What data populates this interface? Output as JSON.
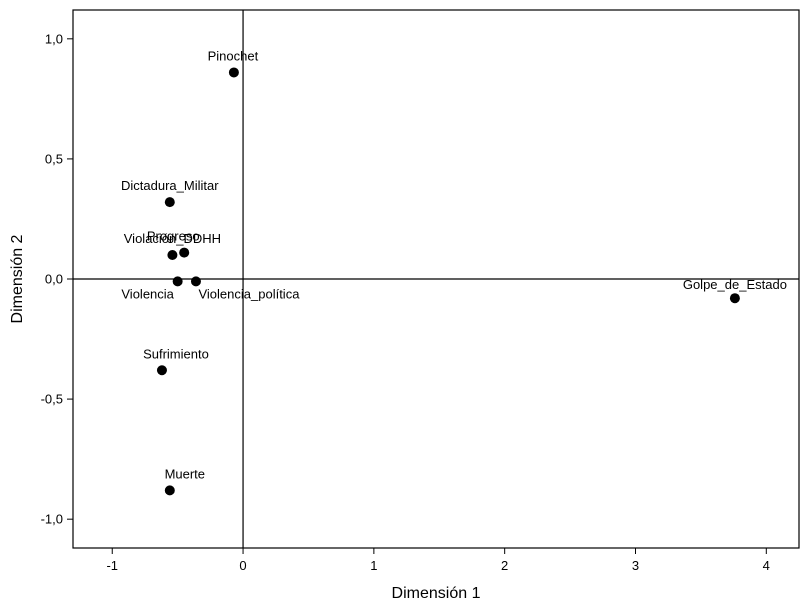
{
  "chart_data": {
    "type": "scatter",
    "xlabel": "Dimensión 1",
    "ylabel": "Dimensión 2",
    "xlim": [
      -1.3,
      4.25
    ],
    "ylim": [
      -1.12,
      1.12
    ],
    "xticks": [
      -1,
      0,
      1,
      2,
      3,
      4
    ],
    "xtick_labels": [
      "-1",
      "0",
      "1",
      "2",
      "3",
      "4"
    ],
    "yticks": [
      1.0,
      0.5,
      0.0,
      -0.5,
      -1.0
    ],
    "ytick_labels": [
      "1,0",
      "0,5",
      "0,0",
      "-0,5",
      "-1,0"
    ],
    "reference_lines": {
      "x": 0,
      "y": 0
    },
    "grid": false,
    "marker_color": "#000000",
    "points": [
      {
        "label": "Pinochet",
        "x": -0.07,
        "y": 0.86
      },
      {
        "label": "Dictadura_Militar",
        "x": -0.56,
        "y": 0.32
      },
      {
        "label": "Progreso",
        "x": -0.45,
        "y": 0.11
      },
      {
        "label": "Violación_DDHH",
        "x": -0.54,
        "y": 0.1
      },
      {
        "label": "Violencia",
        "x": -0.5,
        "y": -0.01
      },
      {
        "label": "Violencia_política",
        "x": -0.36,
        "y": -0.01
      },
      {
        "label": "Sufrimiento",
        "x": -0.62,
        "y": -0.38
      },
      {
        "label": "Muerte",
        "x": -0.56,
        "y": -0.88
      },
      {
        "label": "Golpe_de_Estado",
        "x": 3.76,
        "y": -0.08
      }
    ]
  }
}
